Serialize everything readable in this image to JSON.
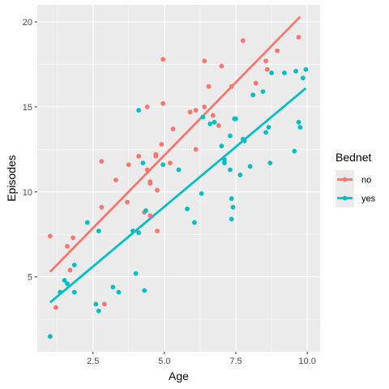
{
  "chart_data": {
    "type": "scatter",
    "xlabel": "Age",
    "ylabel": "Episodes",
    "xlim": [
      0.55,
      10.45
    ],
    "ylim": [
      0.6,
      21.0
    ],
    "x_ticks": [
      2.5,
      5.0,
      7.5,
      10.0
    ],
    "x_tick_labels": [
      "2.5",
      "5.0",
      "7.5",
      "10.0"
    ],
    "x_minor_ticks": [
      1.25,
      3.75,
      6.25,
      8.75
    ],
    "y_ticks": [
      5,
      10,
      15,
      20
    ],
    "y_tick_labels": [
      "5",
      "10",
      "15",
      "20"
    ],
    "y_minor_ticks": [
      2.5,
      7.5,
      12.5,
      17.5
    ],
    "panel_background": "#ebebeb",
    "grid_color": "#ffffff",
    "grid": true,
    "legend": {
      "title": "Bednet",
      "placement": "right"
    },
    "series": [
      {
        "name": "no",
        "color": "#f8766d",
        "fit_line": {
          "x": [
            1.0,
            9.75
          ],
          "y": [
            5.3,
            20.3
          ]
        },
        "points": [
          {
            "x": 1.0,
            "y": 7.4
          },
          {
            "x": 1.2,
            "y": 3.2
          },
          {
            "x": 1.6,
            "y": 6.8
          },
          {
            "x": 1.7,
            "y": 5.4
          },
          {
            "x": 1.8,
            "y": 7.3
          },
          {
            "x": 2.8,
            "y": 11.8
          },
          {
            "x": 2.8,
            "y": 9.1
          },
          {
            "x": 2.9,
            "y": 3.4
          },
          {
            "x": 3.3,
            "y": 10.7
          },
          {
            "x": 3.7,
            "y": 9.4
          },
          {
            "x": 3.75,
            "y": 11.6
          },
          {
            "x": 3.9,
            "y": 7.7
          },
          {
            "x": 4.1,
            "y": 12.1
          },
          {
            "x": 4.3,
            "y": 8.8
          },
          {
            "x": 4.4,
            "y": 15.0
          },
          {
            "x": 4.4,
            "y": 11.3
          },
          {
            "x": 4.5,
            "y": 10.6
          },
          {
            "x": 4.5,
            "y": 10.5
          },
          {
            "x": 4.5,
            "y": 8.6
          },
          {
            "x": 4.7,
            "y": 12.1
          },
          {
            "x": 4.7,
            "y": 12.2
          },
          {
            "x": 4.75,
            "y": 10.1
          },
          {
            "x": 4.75,
            "y": 7.7
          },
          {
            "x": 4.9,
            "y": 12.8
          },
          {
            "x": 4.95,
            "y": 15.2
          },
          {
            "x": 4.95,
            "y": 17.8
          },
          {
            "x": 5.2,
            "y": 11.7
          },
          {
            "x": 5.3,
            "y": 13.7
          },
          {
            "x": 5.9,
            "y": 14.7
          },
          {
            "x": 6.1,
            "y": 14.8
          },
          {
            "x": 6.1,
            "y": 12.5
          },
          {
            "x": 6.4,
            "y": 15.0
          },
          {
            "x": 6.4,
            "y": 17.7
          },
          {
            "x": 6.55,
            "y": 16.2
          },
          {
            "x": 6.7,
            "y": 14.5
          },
          {
            "x": 6.9,
            "y": 13.9
          },
          {
            "x": 7.0,
            "y": 17.4
          },
          {
            "x": 7.35,
            "y": 16.2
          },
          {
            "x": 7.75,
            "y": 18.9
          },
          {
            "x": 8.2,
            "y": 16.4
          },
          {
            "x": 8.55,
            "y": 17.7
          },
          {
            "x": 8.6,
            "y": 17.2
          },
          {
            "x": 8.95,
            "y": 18.3
          },
          {
            "x": 9.7,
            "y": 19.1
          }
        ]
      },
      {
        "name": "yes",
        "color": "#00bfc4",
        "fit_line": {
          "x": [
            1.0,
            9.95
          ],
          "y": [
            3.5,
            16.1
          ]
        },
        "points": [
          {
            "x": 1.0,
            "y": 1.5
          },
          {
            "x": 1.35,
            "y": 4.1
          },
          {
            "x": 1.5,
            "y": 4.8
          },
          {
            "x": 1.6,
            "y": 4.6
          },
          {
            "x": 1.85,
            "y": 5.7
          },
          {
            "x": 1.85,
            "y": 4.1
          },
          {
            "x": 2.3,
            "y": 8.2
          },
          {
            "x": 2.6,
            "y": 3.4
          },
          {
            "x": 2.7,
            "y": 7.7
          },
          {
            "x": 2.7,
            "y": 3.0
          },
          {
            "x": 3.2,
            "y": 4.4
          },
          {
            "x": 3.4,
            "y": 4.1
          },
          {
            "x": 3.9,
            "y": 7.7
          },
          {
            "x": 4.0,
            "y": 5.2
          },
          {
            "x": 4.1,
            "y": 14.8
          },
          {
            "x": 4.1,
            "y": 7.6
          },
          {
            "x": 4.25,
            "y": 11.7
          },
          {
            "x": 4.3,
            "y": 4.2
          },
          {
            "x": 4.35,
            "y": 8.9
          },
          {
            "x": 4.95,
            "y": 11.6
          },
          {
            "x": 5.5,
            "y": 11.3
          },
          {
            "x": 5.8,
            "y": 9.0
          },
          {
            "x": 6.05,
            "y": 8.2
          },
          {
            "x": 6.3,
            "y": 9.9
          },
          {
            "x": 6.35,
            "y": 14.4
          },
          {
            "x": 6.6,
            "y": 14.0
          },
          {
            "x": 6.75,
            "y": 14.1
          },
          {
            "x": 7.0,
            "y": 12.7
          },
          {
            "x": 7.1,
            "y": 11.9
          },
          {
            "x": 7.1,
            "y": 11.7
          },
          {
            "x": 7.3,
            "y": 13.3
          },
          {
            "x": 7.3,
            "y": 11.3
          },
          {
            "x": 7.35,
            "y": 9.6
          },
          {
            "x": 7.35,
            "y": 8.4
          },
          {
            "x": 7.4,
            "y": 9.1
          },
          {
            "x": 7.45,
            "y": 14.3
          },
          {
            "x": 7.5,
            "y": 14.3
          },
          {
            "x": 7.65,
            "y": 11.0
          },
          {
            "x": 7.75,
            "y": 13.1
          },
          {
            "x": 7.8,
            "y": 13.0
          },
          {
            "x": 8.0,
            "y": 11.5
          },
          {
            "x": 8.1,
            "y": 15.7
          },
          {
            "x": 8.45,
            "y": 15.9
          },
          {
            "x": 8.55,
            "y": 13.5
          },
          {
            "x": 8.65,
            "y": 13.8
          },
          {
            "x": 8.7,
            "y": 11.7
          },
          {
            "x": 8.75,
            "y": 17.0
          },
          {
            "x": 9.2,
            "y": 17.0
          },
          {
            "x": 9.55,
            "y": 12.4
          },
          {
            "x": 9.6,
            "y": 17.1
          },
          {
            "x": 9.7,
            "y": 14.1
          },
          {
            "x": 9.75,
            "y": 13.8
          },
          {
            "x": 9.85,
            "y": 16.7
          },
          {
            "x": 9.95,
            "y": 17.2
          }
        ]
      }
    ]
  }
}
